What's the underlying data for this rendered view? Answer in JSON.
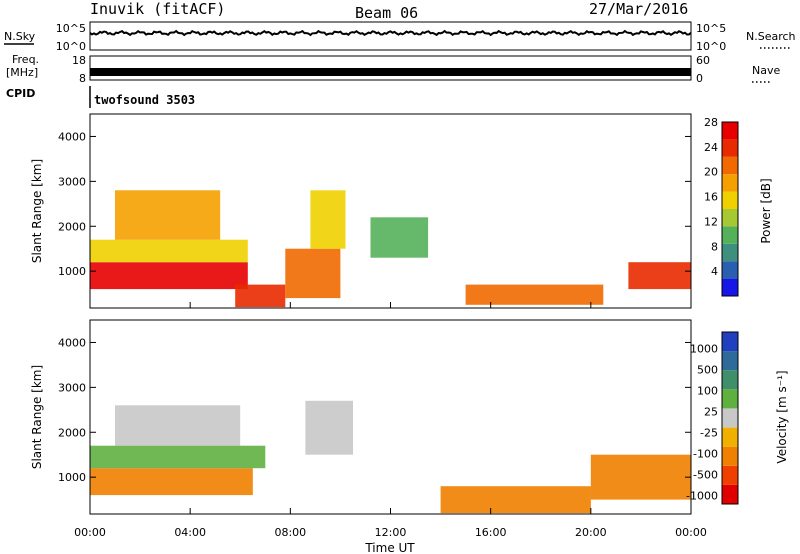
{
  "header": {
    "station": "Inuvik (fitACF)",
    "beam": "Beam 06",
    "date": "27/Mar/2016"
  },
  "nsky_panel": {
    "left_label": "N.Sky",
    "right_label": "N.Search",
    "ticks_left": [
      "10^5",
      "10^0"
    ],
    "ticks_right": [
      "10^5",
      "10^0"
    ]
  },
  "freq_panel": {
    "left_label_1": "Freq.",
    "left_label_2": "[MHz]",
    "cpid_label": "CPID",
    "right_label": "Nave",
    "ticks_left": [
      "18",
      "8"
    ],
    "ticks_right": [
      "60",
      "0"
    ],
    "cpid_value": "twofsound 3503"
  },
  "power_panel": {
    "ylabel": "Slant Range [km]",
    "yticks": [
      "1000",
      "2000",
      "3000",
      "4000"
    ],
    "colorbar_label": "Power [dB]",
    "colorbar_ticks": [
      "4",
      "8",
      "12",
      "16",
      "20",
      "24",
      "28"
    ],
    "colorbar_colors": [
      "#1616e6",
      "#2a5fb0",
      "#3f8f7f",
      "#55b05a",
      "#a6c832",
      "#f0d000",
      "#f5a000",
      "#f06a00",
      "#e82a00",
      "#e80000"
    ]
  },
  "velocity_panel": {
    "ylabel": "Slant Range [km]",
    "yticks": [
      "1000",
      "2000",
      "3000",
      "4000"
    ],
    "colorbar_label": "Velocity [m s⁻¹]",
    "colorbar_ticks": [
      "1000",
      "500",
      "100",
      "25",
      "-25",
      "-100",
      "-500",
      "-1000"
    ],
    "colorbar_colors": [
      "#2040c0",
      "#2e6a9a",
      "#3f8f6a",
      "#60b040",
      "#c8c8c8",
      "#f0b000",
      "#f08000",
      "#f04000",
      "#e00000"
    ]
  },
  "time_axis": {
    "xlabel": "Time UT",
    "ticks": [
      "00:00",
      "04:00",
      "08:00",
      "12:00",
      "16:00",
      "20:00",
      "00:00"
    ]
  },
  "chart_data": {
    "type": "heatmap",
    "x_range_hours": [
      0,
      24
    ],
    "y_range_km": [
      180,
      4500
    ],
    "power_regions": [
      {
        "t0": 0.0,
        "t1": 6.3,
        "r0": 600,
        "r1": 1200,
        "value_db": 28
      },
      {
        "t0": 0.0,
        "t1": 6.3,
        "r0": 1200,
        "r1": 1700,
        "value_db": 16
      },
      {
        "t0": 1.0,
        "t1": 5.2,
        "r0": 1700,
        "r1": 2800,
        "value_db": 20
      },
      {
        "t0": 5.8,
        "t1": 7.8,
        "r0": 200,
        "r1": 700,
        "value_db": 26
      },
      {
        "t0": 7.8,
        "t1": 10.0,
        "r0": 400,
        "r1": 1500,
        "value_db": 22
      },
      {
        "t0": 8.8,
        "t1": 10.2,
        "r0": 1500,
        "r1": 2800,
        "value_db": 18
      },
      {
        "t0": 11.2,
        "t1": 13.5,
        "r0": 1300,
        "r1": 2200,
        "value_db": 12
      },
      {
        "t0": 15.0,
        "t1": 20.5,
        "r0": 250,
        "r1": 700,
        "value_db": 22
      },
      {
        "t0": 21.5,
        "t1": 24.0,
        "r0": 600,
        "r1": 1200,
        "value_db": 26
      }
    ],
    "velocity_regions": [
      {
        "t0": 0.0,
        "t1": 6.5,
        "r0": 600,
        "r1": 1200,
        "value_ms": -200
      },
      {
        "t0": 1.0,
        "t1": 6.0,
        "r0": 1700,
        "r1": 2600,
        "value_ms": 0
      },
      {
        "t0": 0.0,
        "t1": 7.0,
        "r0": 1200,
        "r1": 1700,
        "value_ms": 80
      },
      {
        "t0": 8.6,
        "t1": 10.5,
        "r0": 1500,
        "r1": 2700,
        "value_ms": 0
      },
      {
        "t0": 14.0,
        "t1": 20.0,
        "r0": 200,
        "r1": 800,
        "value_ms": -200
      },
      {
        "t0": 20.0,
        "t1": 24.0,
        "r0": 500,
        "r1": 1500,
        "value_ms": -150
      }
    ]
  }
}
